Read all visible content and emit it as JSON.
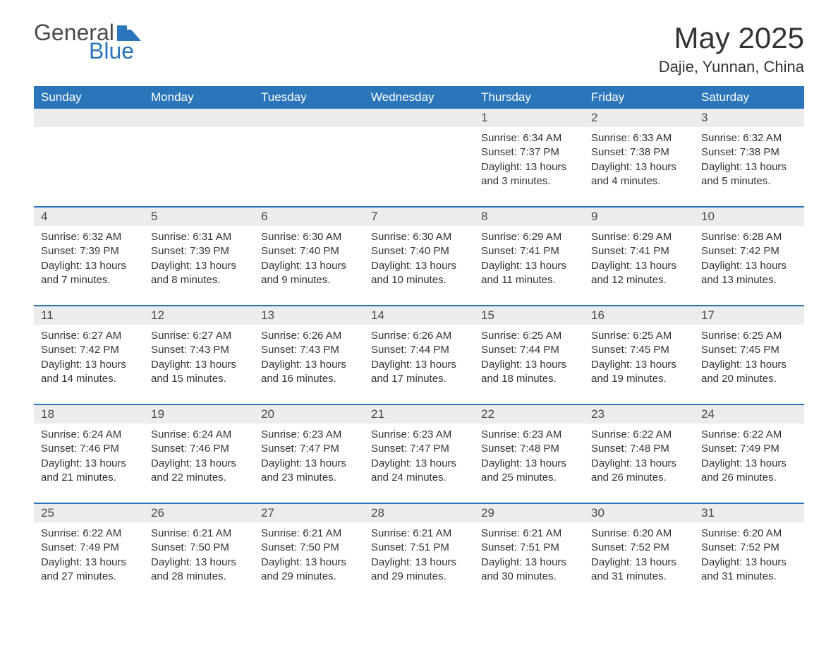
{
  "logo": {
    "text1": "General",
    "text2": "Blue",
    "flag_color": "#2b75bb"
  },
  "title": "May 2025",
  "location": "Dajie, Yunnan, China",
  "colors": {
    "header_bg": "#2b75bb",
    "header_text": "#ffffff",
    "daynum_bg": "#ececec",
    "text": "#333333",
    "week_border": "#2b75bb",
    "background": "#ffffff"
  },
  "fonts": {
    "title_size": 42,
    "location_size": 22,
    "dow_size": 17,
    "body_size": 15
  },
  "days_of_week": [
    "Sunday",
    "Monday",
    "Tuesday",
    "Wednesday",
    "Thursday",
    "Friday",
    "Saturday"
  ],
  "weeks": [
    [
      {
        "empty": true
      },
      {
        "empty": true
      },
      {
        "empty": true
      },
      {
        "empty": true
      },
      {
        "num": "1",
        "sunrise": "Sunrise: 6:34 AM",
        "sunset": "Sunset: 7:37 PM",
        "daylight1": "Daylight: 13 hours",
        "daylight2": "and 3 minutes."
      },
      {
        "num": "2",
        "sunrise": "Sunrise: 6:33 AM",
        "sunset": "Sunset: 7:38 PM",
        "daylight1": "Daylight: 13 hours",
        "daylight2": "and 4 minutes."
      },
      {
        "num": "3",
        "sunrise": "Sunrise: 6:32 AM",
        "sunset": "Sunset: 7:38 PM",
        "daylight1": "Daylight: 13 hours",
        "daylight2": "and 5 minutes."
      }
    ],
    [
      {
        "num": "4",
        "sunrise": "Sunrise: 6:32 AM",
        "sunset": "Sunset: 7:39 PM",
        "daylight1": "Daylight: 13 hours",
        "daylight2": "and 7 minutes."
      },
      {
        "num": "5",
        "sunrise": "Sunrise: 6:31 AM",
        "sunset": "Sunset: 7:39 PM",
        "daylight1": "Daylight: 13 hours",
        "daylight2": "and 8 minutes."
      },
      {
        "num": "6",
        "sunrise": "Sunrise: 6:30 AM",
        "sunset": "Sunset: 7:40 PM",
        "daylight1": "Daylight: 13 hours",
        "daylight2": "and 9 minutes."
      },
      {
        "num": "7",
        "sunrise": "Sunrise: 6:30 AM",
        "sunset": "Sunset: 7:40 PM",
        "daylight1": "Daylight: 13 hours",
        "daylight2": "and 10 minutes."
      },
      {
        "num": "8",
        "sunrise": "Sunrise: 6:29 AM",
        "sunset": "Sunset: 7:41 PM",
        "daylight1": "Daylight: 13 hours",
        "daylight2": "and 11 minutes."
      },
      {
        "num": "9",
        "sunrise": "Sunrise: 6:29 AM",
        "sunset": "Sunset: 7:41 PM",
        "daylight1": "Daylight: 13 hours",
        "daylight2": "and 12 minutes."
      },
      {
        "num": "10",
        "sunrise": "Sunrise: 6:28 AM",
        "sunset": "Sunset: 7:42 PM",
        "daylight1": "Daylight: 13 hours",
        "daylight2": "and 13 minutes."
      }
    ],
    [
      {
        "num": "11",
        "sunrise": "Sunrise: 6:27 AM",
        "sunset": "Sunset: 7:42 PM",
        "daylight1": "Daylight: 13 hours",
        "daylight2": "and 14 minutes."
      },
      {
        "num": "12",
        "sunrise": "Sunrise: 6:27 AM",
        "sunset": "Sunset: 7:43 PM",
        "daylight1": "Daylight: 13 hours",
        "daylight2": "and 15 minutes."
      },
      {
        "num": "13",
        "sunrise": "Sunrise: 6:26 AM",
        "sunset": "Sunset: 7:43 PM",
        "daylight1": "Daylight: 13 hours",
        "daylight2": "and 16 minutes."
      },
      {
        "num": "14",
        "sunrise": "Sunrise: 6:26 AM",
        "sunset": "Sunset: 7:44 PM",
        "daylight1": "Daylight: 13 hours",
        "daylight2": "and 17 minutes."
      },
      {
        "num": "15",
        "sunrise": "Sunrise: 6:25 AM",
        "sunset": "Sunset: 7:44 PM",
        "daylight1": "Daylight: 13 hours",
        "daylight2": "and 18 minutes."
      },
      {
        "num": "16",
        "sunrise": "Sunrise: 6:25 AM",
        "sunset": "Sunset: 7:45 PM",
        "daylight1": "Daylight: 13 hours",
        "daylight2": "and 19 minutes."
      },
      {
        "num": "17",
        "sunrise": "Sunrise: 6:25 AM",
        "sunset": "Sunset: 7:45 PM",
        "daylight1": "Daylight: 13 hours",
        "daylight2": "and 20 minutes."
      }
    ],
    [
      {
        "num": "18",
        "sunrise": "Sunrise: 6:24 AM",
        "sunset": "Sunset: 7:46 PM",
        "daylight1": "Daylight: 13 hours",
        "daylight2": "and 21 minutes."
      },
      {
        "num": "19",
        "sunrise": "Sunrise: 6:24 AM",
        "sunset": "Sunset: 7:46 PM",
        "daylight1": "Daylight: 13 hours",
        "daylight2": "and 22 minutes."
      },
      {
        "num": "20",
        "sunrise": "Sunrise: 6:23 AM",
        "sunset": "Sunset: 7:47 PM",
        "daylight1": "Daylight: 13 hours",
        "daylight2": "and 23 minutes."
      },
      {
        "num": "21",
        "sunrise": "Sunrise: 6:23 AM",
        "sunset": "Sunset: 7:47 PM",
        "daylight1": "Daylight: 13 hours",
        "daylight2": "and 24 minutes."
      },
      {
        "num": "22",
        "sunrise": "Sunrise: 6:23 AM",
        "sunset": "Sunset: 7:48 PM",
        "daylight1": "Daylight: 13 hours",
        "daylight2": "and 25 minutes."
      },
      {
        "num": "23",
        "sunrise": "Sunrise: 6:22 AM",
        "sunset": "Sunset: 7:48 PM",
        "daylight1": "Daylight: 13 hours",
        "daylight2": "and 26 minutes."
      },
      {
        "num": "24",
        "sunrise": "Sunrise: 6:22 AM",
        "sunset": "Sunset: 7:49 PM",
        "daylight1": "Daylight: 13 hours",
        "daylight2": "and 26 minutes."
      }
    ],
    [
      {
        "num": "25",
        "sunrise": "Sunrise: 6:22 AM",
        "sunset": "Sunset: 7:49 PM",
        "daylight1": "Daylight: 13 hours",
        "daylight2": "and 27 minutes."
      },
      {
        "num": "26",
        "sunrise": "Sunrise: 6:21 AM",
        "sunset": "Sunset: 7:50 PM",
        "daylight1": "Daylight: 13 hours",
        "daylight2": "and 28 minutes."
      },
      {
        "num": "27",
        "sunrise": "Sunrise: 6:21 AM",
        "sunset": "Sunset: 7:50 PM",
        "daylight1": "Daylight: 13 hours",
        "daylight2": "and 29 minutes."
      },
      {
        "num": "28",
        "sunrise": "Sunrise: 6:21 AM",
        "sunset": "Sunset: 7:51 PM",
        "daylight1": "Daylight: 13 hours",
        "daylight2": "and 29 minutes."
      },
      {
        "num": "29",
        "sunrise": "Sunrise: 6:21 AM",
        "sunset": "Sunset: 7:51 PM",
        "daylight1": "Daylight: 13 hours",
        "daylight2": "and 30 minutes."
      },
      {
        "num": "30",
        "sunrise": "Sunrise: 6:20 AM",
        "sunset": "Sunset: 7:52 PM",
        "daylight1": "Daylight: 13 hours",
        "daylight2": "and 31 minutes."
      },
      {
        "num": "31",
        "sunrise": "Sunrise: 6:20 AM",
        "sunset": "Sunset: 7:52 PM",
        "daylight1": "Daylight: 13 hours",
        "daylight2": "and 31 minutes."
      }
    ]
  ]
}
